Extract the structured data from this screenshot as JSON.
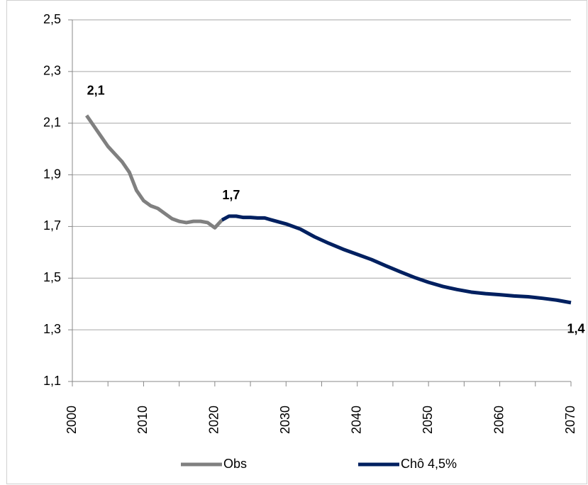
{
  "chart_data": {
    "type": "line",
    "series": [
      {
        "name": "Obs",
        "color": "#808080",
        "x": [
          2002,
          2003,
          2004,
          2005,
          2006,
          2007,
          2008,
          2009,
          2010,
          2011,
          2012,
          2013,
          2014,
          2015,
          2016,
          2017,
          2018,
          2019,
          2020,
          2021
        ],
        "values": [
          2.13,
          2.09,
          2.05,
          2.01,
          1.98,
          1.95,
          1.91,
          1.84,
          1.8,
          1.78,
          1.77,
          1.75,
          1.73,
          1.72,
          1.715,
          1.72,
          1.72,
          1.715,
          1.695,
          1.725
        ],
        "value_labels": [
          "2,1",
          null,
          null,
          null,
          null,
          null,
          null,
          null,
          null,
          null,
          null,
          null,
          null,
          null,
          null,
          null,
          null,
          null,
          null,
          null
        ]
      },
      {
        "name": "Chô 4,5%",
        "color": "#002060",
        "x": [
          2021,
          2022,
          2023,
          2024,
          2025,
          2026,
          2027,
          2028,
          2030,
          2032,
          2034,
          2036,
          2038,
          2040,
          2042,
          2044,
          2046,
          2048,
          2050,
          2052,
          2054,
          2056,
          2058,
          2060,
          2062,
          2064,
          2066,
          2068,
          2070
        ],
        "values": [
          1.725,
          1.74,
          1.74,
          1.735,
          1.735,
          1.733,
          1.733,
          1.725,
          1.71,
          1.69,
          1.66,
          1.635,
          1.612,
          1.592,
          1.572,
          1.548,
          1.525,
          1.503,
          1.484,
          1.468,
          1.456,
          1.446,
          1.44,
          1.436,
          1.431,
          1.428,
          1.422,
          1.415,
          1.405
        ],
        "value_labels": [
          "1,7",
          null,
          null,
          null,
          null,
          null,
          null,
          null,
          null,
          null,
          null,
          null,
          null,
          null,
          null,
          null,
          null,
          null,
          null,
          null,
          null,
          null,
          null,
          null,
          null,
          null,
          null,
          null,
          "1,4"
        ]
      }
    ],
    "xlim": [
      2000,
      2070
    ],
    "xticks": [
      2000,
      2010,
      2020,
      2030,
      2040,
      2050,
      2060,
      2070
    ],
    "ylim": [
      1.1,
      2.5
    ],
    "yticks": [
      {
        "value": 1.1,
        "label": "1,1"
      },
      {
        "value": 1.3,
        "label": "1,3"
      },
      {
        "value": 1.5,
        "label": "1,5"
      },
      {
        "value": 1.7,
        "label": "1,7"
      },
      {
        "value": 1.9,
        "label": "1,9"
      },
      {
        "value": 2.1,
        "label": "2,1"
      },
      {
        "value": 2.3,
        "label": "2,3"
      },
      {
        "value": 2.5,
        "label": "2,5"
      }
    ],
    "grid": true,
    "legend": "bottom"
  }
}
